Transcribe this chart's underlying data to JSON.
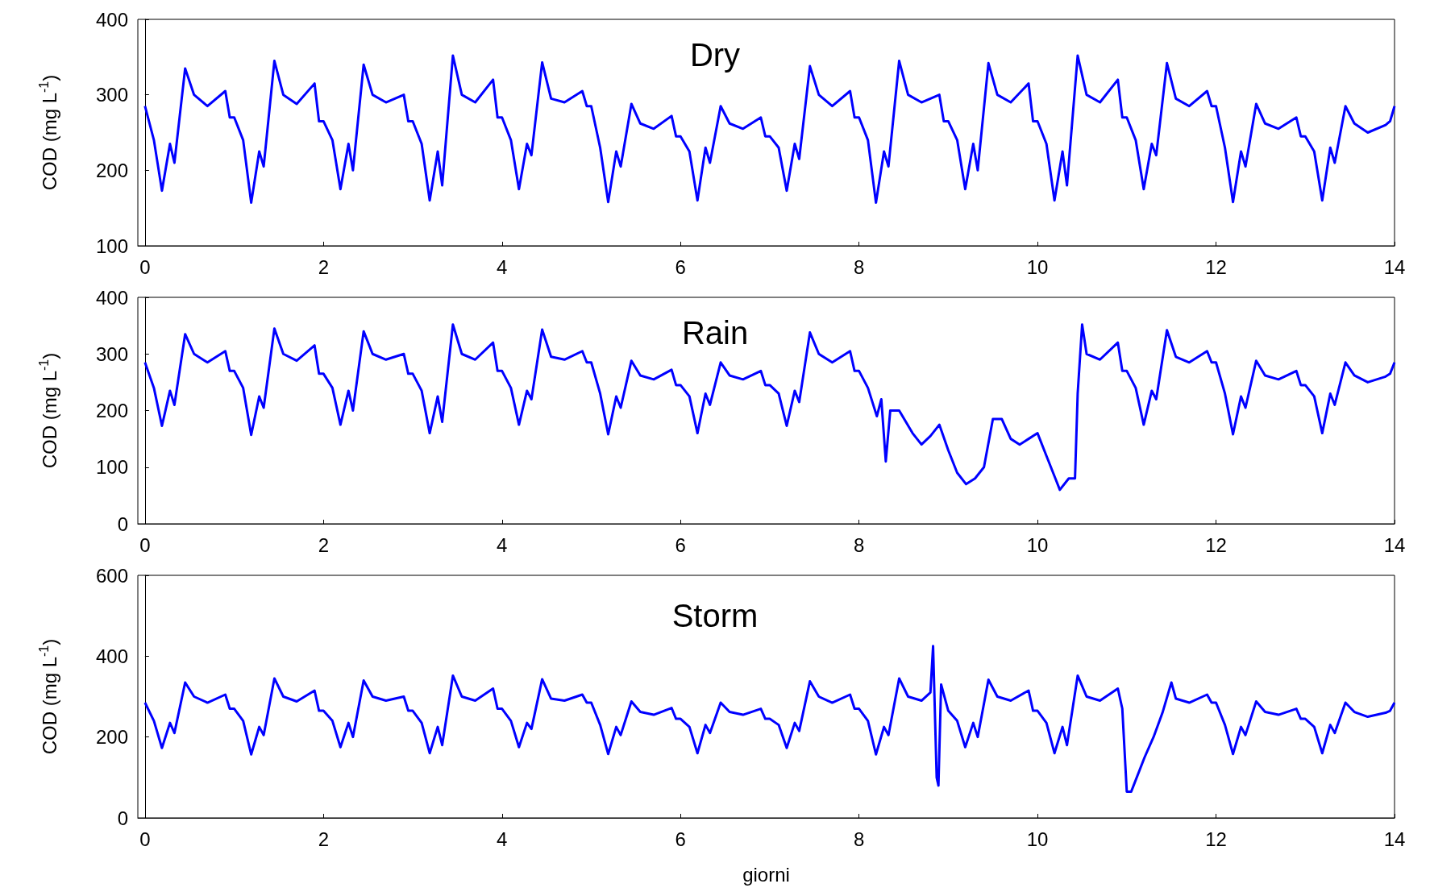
{
  "chart_data": [
    {
      "type": "line",
      "title": "Dry",
      "ylabel": "COD (mg L$^{-1}$)",
      "xlim": [
        -0.08,
        14
      ],
      "xticks": [
        0,
        2,
        4,
        6,
        8,
        10,
        12,
        14
      ],
      "ylim": [
        100,
        400
      ],
      "yticks": [
        100,
        200,
        300,
        400
      ],
      "x": [
        0,
        0.1,
        0.19,
        0.28,
        0.33,
        0.45,
        0.55,
        0.7,
        0.9,
        0.95,
        1,
        1.1,
        1.19,
        1.28,
        1.33,
        1.45,
        1.55,
        1.7,
        1.9,
        1.95,
        2,
        2.1,
        2.19,
        2.28,
        2.33,
        2.45,
        2.55,
        2.7,
        2.9,
        2.95,
        3,
        3.1,
        3.19,
        3.28,
        3.33,
        3.45,
        3.55,
        3.7,
        3.9,
        3.95,
        4,
        4.1,
        4.19,
        4.28,
        4.33,
        4.45,
        4.55,
        4.7,
        4.9,
        4.95,
        5,
        5.1,
        5.19,
        5.28,
        5.33,
        5.45,
        5.55,
        5.7,
        5.9,
        5.95,
        6,
        6.1,
        6.19,
        6.28,
        6.33,
        6.45,
        6.55,
        6.7,
        6.9,
        6.95,
        7,
        7.1,
        7.19,
        7.28,
        7.33,
        7.45,
        7.55,
        7.7,
        7.9,
        7.95,
        8,
        8.1,
        8.19,
        8.28,
        8.33,
        8.45,
        8.55,
        8.7,
        8.9,
        8.95,
        9,
        9.1,
        9.19,
        9.28,
        9.33,
        9.45,
        9.55,
        9.7,
        9.9,
        9.95,
        10,
        10.1,
        10.19,
        10.28,
        10.33,
        10.45,
        10.55,
        10.7,
        10.9,
        10.95,
        11,
        11.1,
        11.19,
        11.28,
        11.33,
        11.45,
        11.55,
        11.7,
        11.9,
        11.95,
        12,
        12.1,
        12.19,
        12.28,
        12.33,
        12.45,
        12.55,
        12.7,
        12.9,
        12.95,
        13,
        13.1,
        13.19,
        13.28,
        13.33,
        13.45,
        13.55,
        13.7,
        13.9,
        13.95,
        14
      ],
      "series": [
        {
          "color": "#0000ff",
          "values": [
            285,
            240,
            173,
            235,
            210,
            335,
            300,
            285,
            305,
            270,
            270,
            240,
            157,
            225,
            205,
            345,
            300,
            288,
            315,
            265,
            265,
            240,
            175,
            235,
            200,
            340,
            300,
            290,
            300,
            265,
            265,
            235,
            160,
            225,
            180,
            352,
            300,
            290,
            320,
            270,
            270,
            240,
            175,
            235,
            220,
            343,
            295,
            290,
            305,
            285,
            285,
            230,
            158,
            225,
            205,
            288,
            262,
            255,
            272,
            245,
            245,
            225,
            160,
            230,
            210,
            285,
            262,
            255,
            270,
            245,
            245,
            230,
            173,
            235,
            215,
            338,
            300,
            285,
            305,
            270,
            270,
            240,
            157,
            225,
            205,
            345,
            300,
            290,
            300,
            265,
            265,
            240,
            175,
            235,
            200,
            342,
            300,
            290,
            315,
            265,
            265,
            235,
            160,
            225,
            180,
            352,
            300,
            290,
            320,
            270,
            270,
            240,
            175,
            235,
            220,
            342,
            295,
            285,
            305,
            285,
            285,
            230,
            158,
            225,
            205,
            288,
            262,
            255,
            270,
            245,
            245,
            225,
            160,
            230,
            210,
            285,
            262,
            250,
            260,
            265,
            285
          ]
        }
      ]
    },
    {
      "type": "line",
      "title": "Rain",
      "ylabel": "COD (mg L$^{-1}$)",
      "xlim": [
        -0.08,
        14
      ],
      "xticks": [
        0,
        2,
        4,
        6,
        8,
        10,
        12,
        14
      ],
      "ylim": [
        0,
        400
      ],
      "yticks": [
        0,
        100,
        200,
        300,
        400
      ],
      "x": [
        0,
        0.1,
        0.19,
        0.28,
        0.33,
        0.45,
        0.55,
        0.7,
        0.9,
        0.95,
        1,
        1.1,
        1.19,
        1.28,
        1.33,
        1.45,
        1.55,
        1.7,
        1.9,
        1.95,
        2,
        2.1,
        2.19,
        2.28,
        2.33,
        2.45,
        2.55,
        2.7,
        2.9,
        2.95,
        3,
        3.1,
        3.19,
        3.28,
        3.33,
        3.45,
        3.55,
        3.7,
        3.9,
        3.95,
        4,
        4.1,
        4.19,
        4.28,
        4.33,
        4.45,
        4.55,
        4.7,
        4.9,
        4.95,
        5,
        5.1,
        5.19,
        5.28,
        5.33,
        5.45,
        5.55,
        5.7,
        5.9,
        5.95,
        6,
        6.1,
        6.19,
        6.28,
        6.33,
        6.45,
        6.55,
        6.7,
        6.9,
        6.95,
        7,
        7.1,
        7.19,
        7.28,
        7.33,
        7.45,
        7.55,
        7.7,
        7.9,
        7.95,
        8,
        8.1,
        8.2,
        8.25,
        8.3,
        8.35,
        8.45,
        8.6,
        8.7,
        8.8,
        8.9,
        9,
        9.1,
        9.2,
        9.3,
        9.4,
        9.5,
        9.6,
        9.7,
        9.8,
        9.9,
        10,
        10.1,
        10.2,
        10.25,
        10.35,
        10.42,
        10.45,
        10.5,
        10.55,
        10.7,
        10.9,
        10.95,
        11,
        11.1,
        11.19,
        11.28,
        11.33,
        11.45,
        11.55,
        11.7,
        11.9,
        11.95,
        12,
        12.1,
        12.19,
        12.28,
        12.33,
        12.45,
        12.55,
        12.7,
        12.9,
        12.95,
        13,
        13.1,
        13.19,
        13.28,
        13.33,
        13.45,
        13.55,
        13.7,
        13.9,
        13.95,
        14
      ],
      "series": [
        {
          "color": "#0000ff",
          "values": [
            285,
            240,
            173,
            235,
            210,
            335,
            300,
            285,
            305,
            270,
            270,
            240,
            157,
            225,
            205,
            345,
            300,
            288,
            315,
            265,
            265,
            240,
            175,
            235,
            200,
            340,
            300,
            290,
            300,
            265,
            265,
            235,
            160,
            225,
            180,
            352,
            300,
            290,
            320,
            270,
            270,
            240,
            175,
            235,
            220,
            343,
            295,
            290,
            305,
            285,
            285,
            230,
            158,
            225,
            205,
            288,
            262,
            255,
            272,
            245,
            245,
            225,
            160,
            230,
            210,
            285,
            262,
            255,
            270,
            245,
            245,
            230,
            173,
            235,
            215,
            338,
            300,
            285,
            305,
            270,
            270,
            240,
            190,
            220,
            110,
            200,
            200,
            160,
            140,
            155,
            175,
            130,
            90,
            70,
            80,
            100,
            185,
            185,
            150,
            140,
            150,
            160,
            120,
            80,
            60,
            80,
            80,
            230,
            352,
            300,
            290,
            320,
            270,
            270,
            240,
            175,
            235,
            220,
            342,
            295,
            285,
            305,
            285,
            285,
            230,
            158,
            225,
            205,
            288,
            262,
            255,
            270,
            245,
            245,
            225,
            160,
            230,
            210,
            285,
            262,
            250,
            260,
            265,
            285
          ]
        }
      ]
    },
    {
      "type": "line",
      "title": "Storm",
      "ylabel": "COD (mg L$^{-1}$)",
      "xlabel": "giorni",
      "xlim": [
        -0.08,
        14
      ],
      "xticks": [
        0,
        2,
        4,
        6,
        8,
        10,
        12,
        14
      ],
      "ylim": [
        0,
        600
      ],
      "yticks": [
        0,
        200,
        400,
        600
      ],
      "x": [
        0,
        0.1,
        0.19,
        0.28,
        0.33,
        0.45,
        0.55,
        0.7,
        0.9,
        0.95,
        1,
        1.1,
        1.19,
        1.28,
        1.33,
        1.45,
        1.55,
        1.7,
        1.9,
        1.95,
        2,
        2.1,
        2.19,
        2.28,
        2.33,
        2.45,
        2.55,
        2.7,
        2.9,
        2.95,
        3,
        3.1,
        3.19,
        3.28,
        3.33,
        3.45,
        3.55,
        3.7,
        3.9,
        3.95,
        4,
        4.1,
        4.19,
        4.28,
        4.33,
        4.45,
        4.55,
        4.7,
        4.9,
        4.95,
        5,
        5.1,
        5.19,
        5.28,
        5.33,
        5.45,
        5.55,
        5.7,
        5.9,
        5.95,
        6,
        6.1,
        6.19,
        6.28,
        6.33,
        6.45,
        6.55,
        6.7,
        6.9,
        6.95,
        7,
        7.1,
        7.19,
        7.28,
        7.33,
        7.45,
        7.55,
        7.7,
        7.9,
        7.95,
        8,
        8.1,
        8.19,
        8.28,
        8.33,
        8.45,
        8.55,
        8.7,
        8.8,
        8.83,
        8.87,
        8.89,
        8.92,
        9,
        9.1,
        9.19,
        9.28,
        9.33,
        9.45,
        9.55,
        9.7,
        9.9,
        9.95,
        10,
        10.1,
        10.19,
        10.28,
        10.33,
        10.45,
        10.55,
        10.7,
        10.9,
        10.95,
        11,
        11.05,
        11.2,
        11.3,
        11.4,
        11.5,
        11.55,
        11.7,
        11.9,
        11.95,
        12,
        12.1,
        12.19,
        12.28,
        12.33,
        12.45,
        12.55,
        12.7,
        12.9,
        12.95,
        13,
        13.1,
        13.19,
        13.28,
        13.33,
        13.45,
        13.55,
        13.7,
        13.9,
        13.95,
        14
      ],
      "series": [
        {
          "color": "#0000ff",
          "values": [
            285,
            240,
            173,
            235,
            210,
            335,
            300,
            285,
            305,
            270,
            270,
            240,
            157,
            225,
            205,
            345,
            300,
            288,
            315,
            265,
            265,
            240,
            175,
            235,
            200,
            340,
            300,
            290,
            300,
            265,
            265,
            235,
            160,
            225,
            180,
            352,
            300,
            290,
            320,
            270,
            270,
            240,
            175,
            235,
            220,
            343,
            295,
            290,
            305,
            285,
            285,
            230,
            158,
            225,
            205,
            288,
            262,
            255,
            272,
            245,
            245,
            225,
            160,
            230,
            210,
            285,
            262,
            255,
            270,
            245,
            245,
            230,
            173,
            235,
            215,
            338,
            300,
            285,
            305,
            270,
            270,
            240,
            157,
            225,
            205,
            345,
            300,
            290,
            310,
            425,
            100,
            80,
            330,
            265,
            240,
            175,
            235,
            200,
            342,
            300,
            290,
            315,
            265,
            265,
            235,
            160,
            225,
            180,
            352,
            300,
            290,
            320,
            270,
            65,
            65,
            150,
            200,
            260,
            335,
            295,
            285,
            305,
            285,
            285,
            230,
            158,
            225,
            205,
            288,
            262,
            255,
            270,
            245,
            245,
            225,
            160,
            230,
            210,
            285,
            262,
            250,
            260,
            265,
            285
          ]
        }
      ]
    }
  ]
}
